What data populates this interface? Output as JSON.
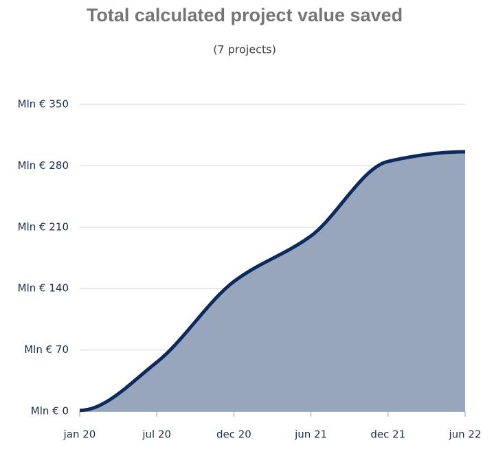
{
  "chart_data": {
    "type": "area",
    "title": "Total calculated project value saved",
    "subtitle": "(7 projects)",
    "categories": [
      "jan 20",
      "jul 20",
      "dec 20",
      "jun 21",
      "dec 21",
      "jun 22"
    ],
    "values": [
      1,
      56,
      148,
      200,
      285,
      296
    ],
    "color": "#0d2a5c",
    "fill": "#97a6bd",
    "ylim": [
      0,
      350
    ],
    "yticks": [
      {
        "value": 0,
        "label": "Mln € 0"
      },
      {
        "value": 70,
        "label": "Mln € 70"
      },
      {
        "value": 140,
        "label": "Mln € 140"
      },
      {
        "value": 210,
        "label": "Mln € 210"
      },
      {
        "value": 280,
        "label": "Mln € 280"
      },
      {
        "value": 350,
        "label": "Mln € 350"
      }
    ],
    "grid": true
  }
}
